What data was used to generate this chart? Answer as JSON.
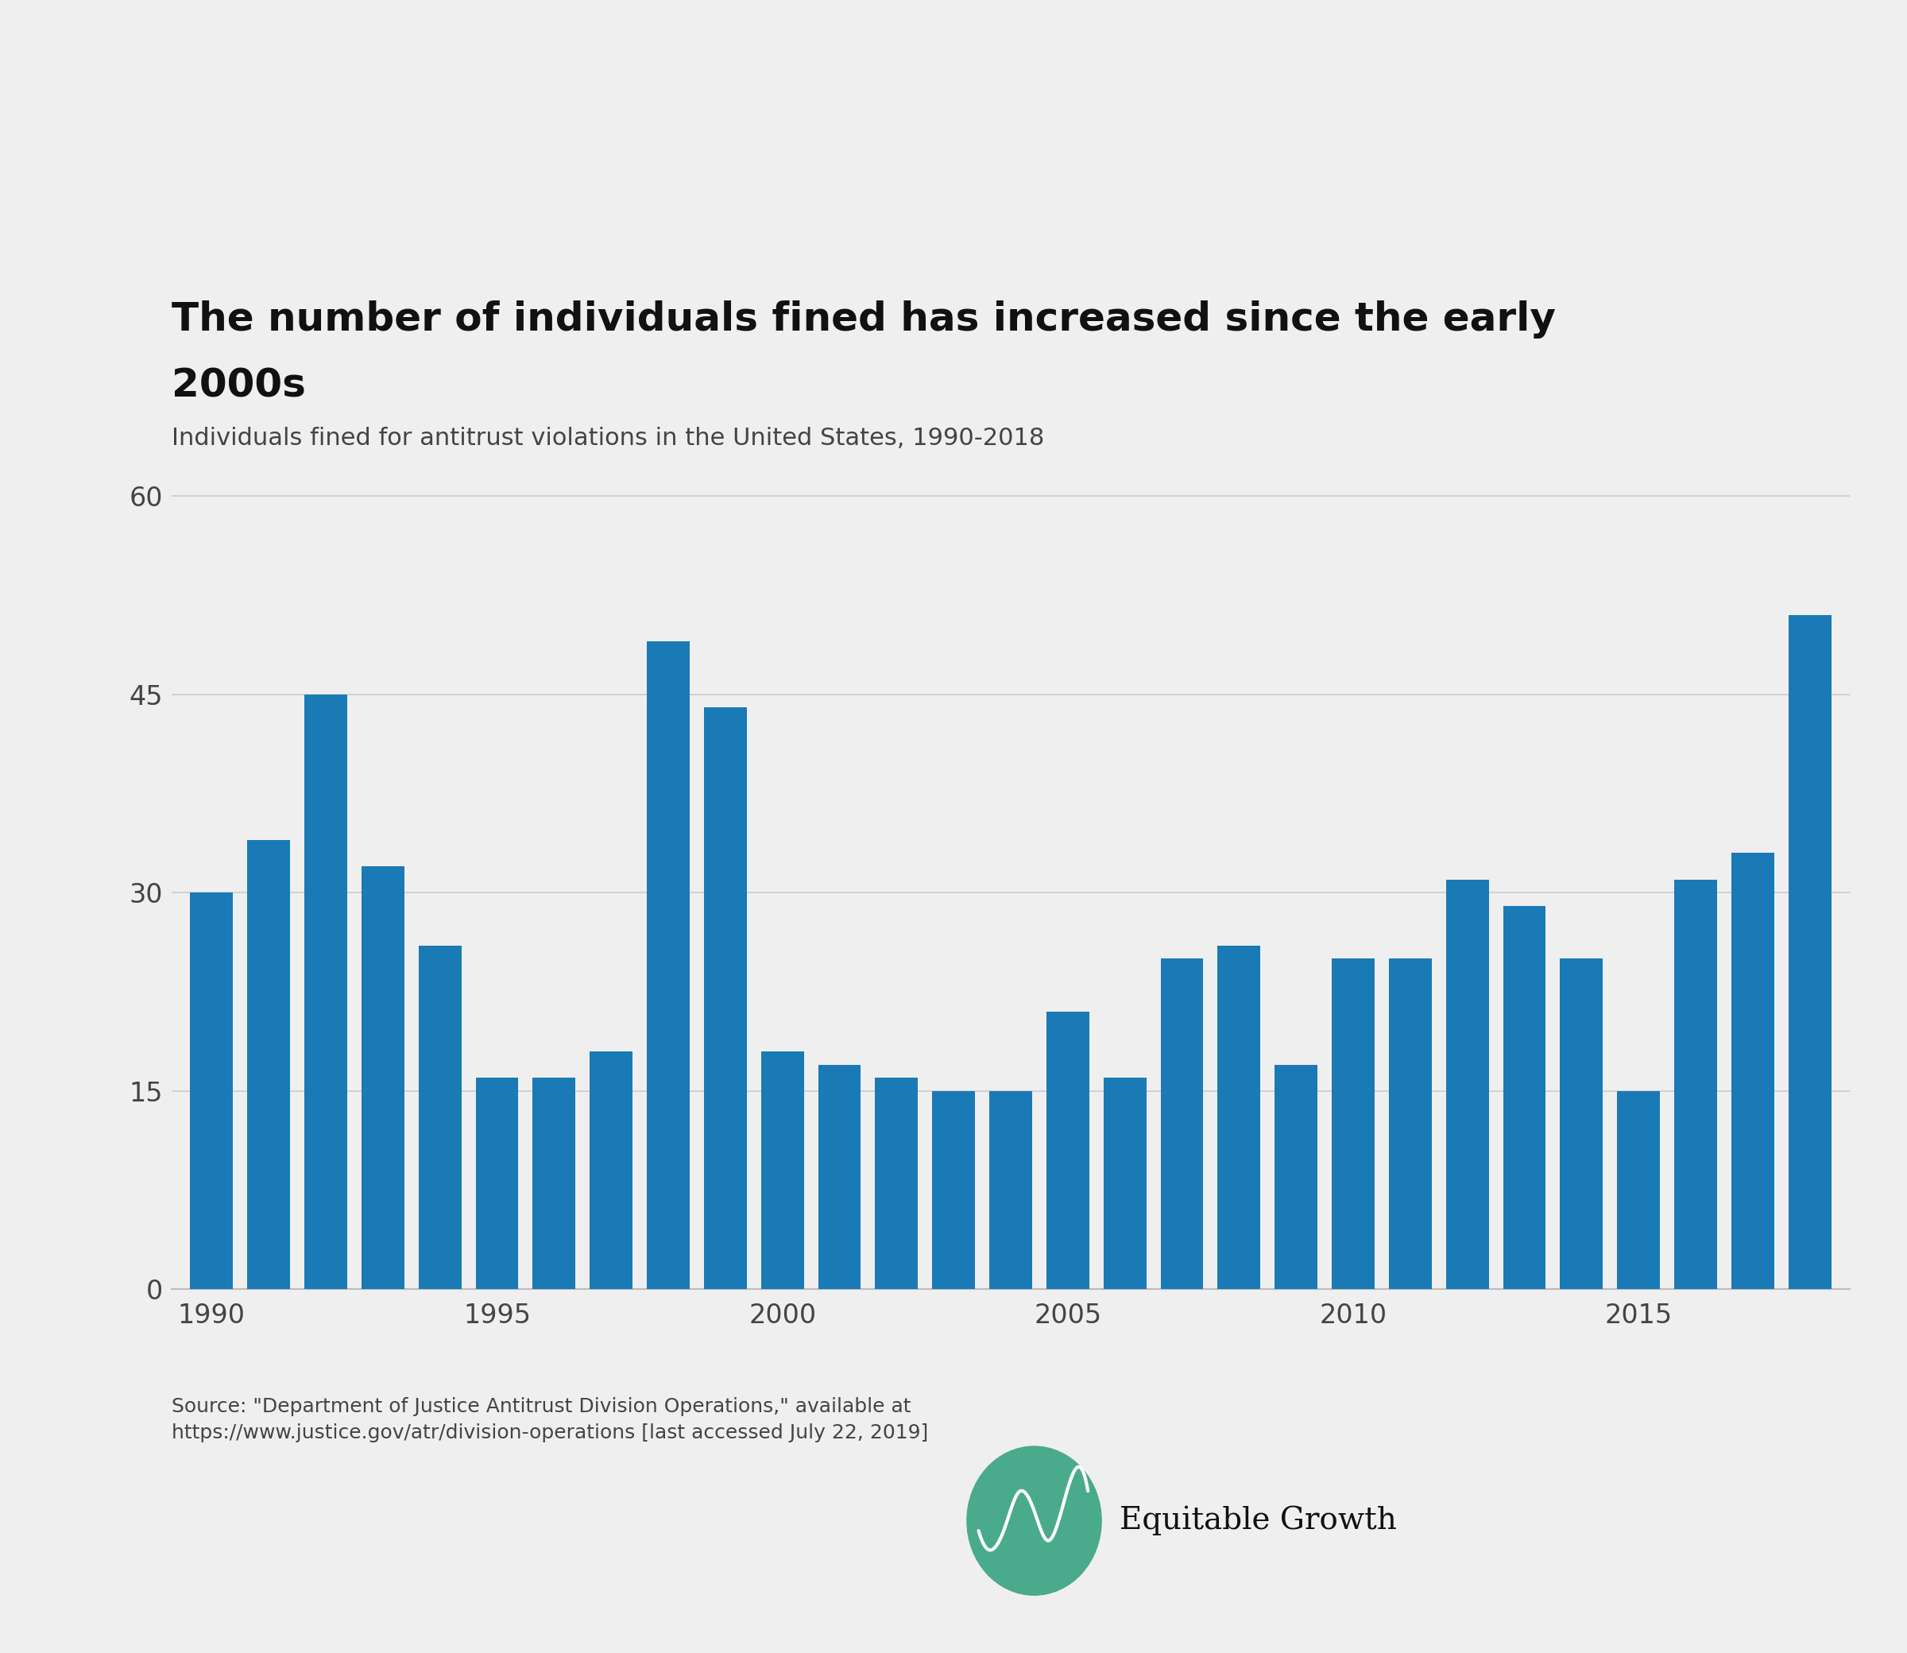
{
  "title_line1": "The number of individuals fined has increased since the early",
  "title_line2": "2000s",
  "subtitle": "Individuals fined for antitrust violations in the United States, 1990-2018",
  "years": [
    1990,
    1991,
    1992,
    1993,
    1994,
    1995,
    1996,
    1997,
    1998,
    1999,
    2000,
    2001,
    2002,
    2003,
    2004,
    2005,
    2006,
    2007,
    2008,
    2009,
    2010,
    2011,
    2012,
    2013,
    2014,
    2015,
    2016,
    2017,
    2018
  ],
  "values": [
    30,
    34,
    45,
    32,
    26,
    16,
    16,
    18,
    49,
    44,
    18,
    17,
    16,
    15,
    15,
    21,
    16,
    25,
    26,
    17,
    25,
    25,
    31,
    29,
    25,
    15,
    31,
    33,
    51
  ],
  "bar_color": "#1a7ab5",
  "background_color": "#efefef",
  "yticks": [
    0,
    15,
    30,
    45,
    60
  ],
  "xticks": [
    1990,
    1995,
    2000,
    2005,
    2010,
    2015
  ],
  "ylim": [
    0,
    65
  ],
  "source_text": "Source: \"Department of Justice Antitrust Division Operations,\" available at\nhttps://www.justice.gov/atr/division-operations [last accessed July 22, 2019]",
  "title_fontsize": 36,
  "subtitle_fontsize": 22,
  "tick_fontsize": 24,
  "source_fontsize": 18,
  "logo_text_fontsize": 28,
  "bar_width": 0.75,
  "grid_color": "#cccccc",
  "tick_color": "#444444",
  "spine_color": "#bbbbbb"
}
